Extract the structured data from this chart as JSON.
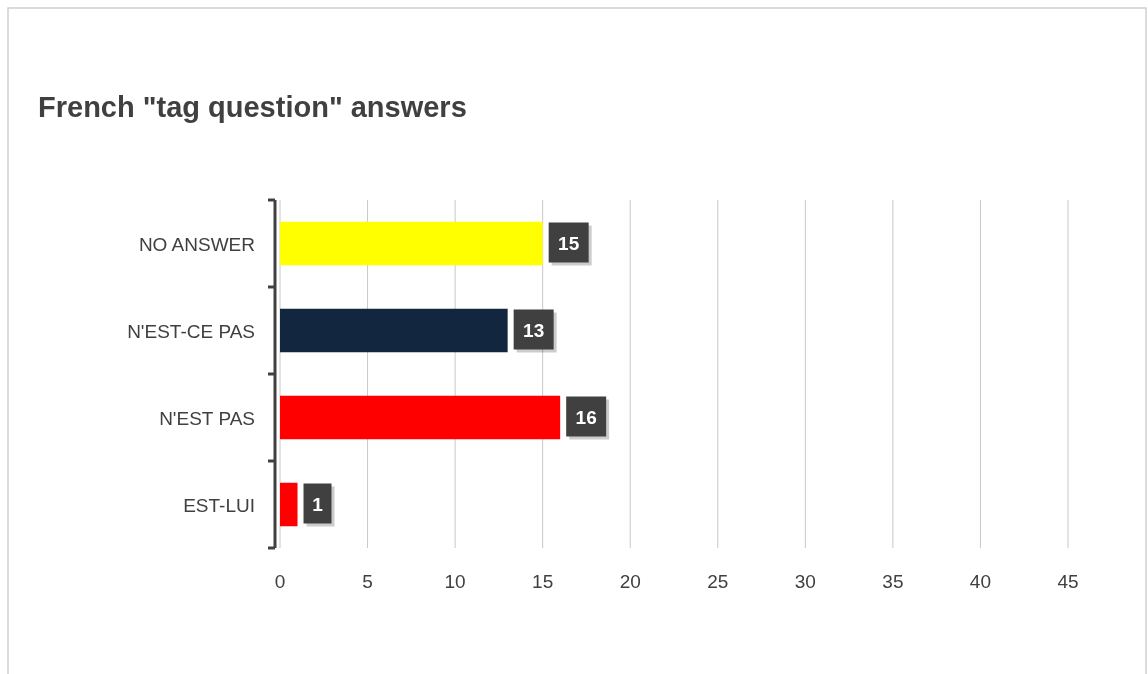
{
  "chart_data": {
    "type": "bar",
    "orientation": "horizontal",
    "title": "French \"tag question\" answers",
    "categories": [
      "NO ANSWER",
      "N'EST-CE PAS",
      "N'EST PAS",
      "EST-LUI"
    ],
    "values": [
      15,
      13,
      16,
      1
    ],
    "colors": [
      "#ffff00",
      "#12263f",
      "#ff0000",
      "#ff0000"
    ],
    "xlim": [
      0,
      45
    ],
    "xticks": [
      0,
      5,
      10,
      15,
      20,
      25,
      30,
      35,
      40,
      45
    ],
    "grid": "x",
    "data_labels": true
  }
}
